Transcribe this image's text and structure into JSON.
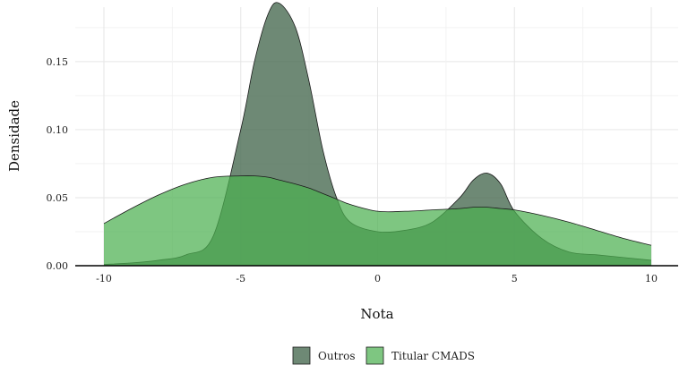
{
  "chart_data": {
    "type": "area",
    "title": "",
    "xlabel": "Nota",
    "ylabel": "Densidade",
    "xlim": [
      -10,
      10
    ],
    "ylim": [
      0,
      0.19
    ],
    "x_ticks": [
      -10,
      -5,
      0,
      5,
      10
    ],
    "x_tick_labels": [
      "-10",
      "-5",
      "0",
      "5",
      "10"
    ],
    "y_ticks": [
      0,
      0.05,
      0.1,
      0.15
    ],
    "y_tick_labels": [
      "0.00",
      "0.05",
      "0.10",
      "0.15"
    ],
    "grid": true,
    "legend_position": "bottom",
    "x": [
      -10,
      -9,
      -8,
      -7,
      -6,
      -5,
      -4.5,
      -4,
      -3.6,
      -3,
      -2.5,
      -2,
      -1.5,
      -1,
      0,
      1,
      2,
      3,
      3.5,
      4,
      4.5,
      5,
      6,
      7,
      8,
      9,
      10
    ],
    "series": [
      {
        "name": "Outros",
        "color": "#4a6b52",
        "opacity": 0.8,
        "values": [
          0.001,
          0.002,
          0.004,
          0.008,
          0.022,
          0.1,
          0.15,
          0.185,
          0.193,
          0.175,
          0.135,
          0.085,
          0.05,
          0.032,
          0.025,
          0.026,
          0.032,
          0.05,
          0.063,
          0.068,
          0.06,
          0.04,
          0.02,
          0.01,
          0.008,
          0.006,
          0.004
        ]
      },
      {
        "name": "Titular CMADS",
        "color": "#4cb050",
        "opacity": 0.72,
        "values": [
          0.031,
          0.042,
          0.052,
          0.06,
          0.065,
          0.066,
          0.066,
          0.065,
          0.063,
          0.06,
          0.057,
          0.053,
          0.049,
          0.045,
          0.04,
          0.04,
          0.041,
          0.042,
          0.043,
          0.043,
          0.042,
          0.041,
          0.037,
          0.032,
          0.026,
          0.02,
          0.015
        ]
      }
    ]
  }
}
